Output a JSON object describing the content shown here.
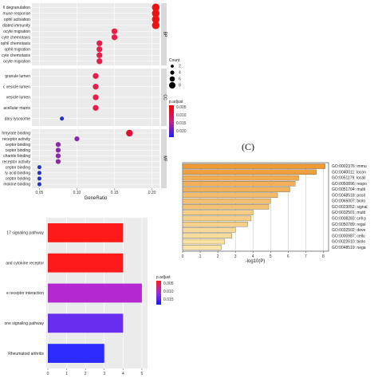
{
  "chart_data": [
    {
      "type": "scatter",
      "xlabel": "GeneRatio",
      "ylabel": "",
      "xlim": [
        0.04,
        0.21
      ],
      "xticks": [
        "0.05",
        "0.10",
        "0.15",
        "0.20"
      ],
      "xtick_values": [
        0.05,
        0.1,
        0.15,
        0.2
      ],
      "facets": [
        {
          "name": "BP",
          "categories": [
            "ll degranulation",
            "mune response",
            "ophil activation",
            "diated immunity",
            "ocyte migration",
            "cyte chemotaxis",
            "ophil chemotaxis",
            "ophil migration",
            "cyte chemotaxis",
            "ocyte migration"
          ],
          "x": [
            0.205,
            0.205,
            0.205,
            0.205,
            0.15,
            0.15,
            0.13,
            0.13,
            0.13,
            0.13
          ],
          "count": [
            5,
            5,
            5,
            5,
            3,
            3,
            3,
            3,
            3,
            3
          ]
        },
        {
          "name": "CC",
          "categories": [
            "granule lumen",
            "c vesicle lumen",
            "vesicle lumen",
            "acellular matrix",
            "dary lysosome"
          ],
          "x": [
            0.125,
            0.125,
            0.125,
            0.125,
            0.08
          ],
          "count": [
            3,
            3,
            3,
            3,
            1
          ]
        },
        {
          "name": "MF",
          "categories": [
            "hmyrate binding",
            "receptor activity",
            "ceptor binding",
            "ceptor binding",
            "charide binding",
            "receptor activity",
            "ceptor binding",
            "ly acid binding",
            "ceptor binding",
            "mokine binding"
          ],
          "x": [
            0.17,
            0.1,
            0.075,
            0.075,
            0.075,
            0.075,
            0.05,
            0.05,
            0.05,
            0.05
          ],
          "count": [
            4,
            2,
            2,
            2,
            2,
            2,
            1,
            1,
            1,
            1
          ]
        }
      ],
      "legend": {
        "count_title": "Count",
        "count_values": [
          2,
          4,
          6,
          8
        ],
        "count_labels": [
          "2",
          "4",
          "6",
          "8"
        ],
        "color_title": "p.adjust",
        "color_labels": [
          "0.005",
          "0.010",
          "0.015",
          "0.020"
        ],
        "color_low": "#ff0000",
        "color_high": "#1a1aff"
      }
    },
    {
      "type": "bar",
      "orientation": "horizontal",
      "panel_label": "(C)",
      "xlabel": "-log10(P)",
      "xlim": [
        0,
        8.3
      ],
      "xticks": [
        "0",
        "1",
        "2",
        "3",
        "4",
        "5",
        "6",
        "7",
        "8"
      ],
      "categories": [
        "GO:0002376: immu",
        "GO:0040011: locon",
        "GO:0051179: locali",
        "GO:0050896: respo",
        "GO:0051704: multi",
        "GO:0048518: posit",
        "GO:0065007: biolo",
        "GO:0023052: signal",
        "GO:0032501: multi",
        "GO:0008283: cell p",
        "GO:0050789: regul",
        "GO:0032502: deve",
        "GO:0000987: cellu",
        "GO:0022610: biolo",
        "GO:0048519: nega"
      ],
      "values": [
        8.1,
        7.6,
        6.6,
        6.4,
        6.1,
        5.4,
        5.0,
        4.9,
        4.0,
        3.9,
        3.7,
        3.0,
        2.8,
        2.4,
        2.2
      ],
      "bar_color_strong": "#ef9a34",
      "bar_color_light": "#f9e3a6"
    },
    {
      "type": "bar",
      "orientation": "horizontal",
      "categories": [
        "17 signaling pathway",
        "and cytokine receptor",
        "e receptor interaction",
        "one signaling pathway",
        "Rheumatoid arthritis"
      ],
      "values": [
        4,
        4,
        5,
        4,
        3
      ],
      "padjust": [
        0.0003,
        0.0003,
        0.008,
        0.016,
        0.019
      ],
      "bar_colors": [
        "#ff1a1a",
        "#ff1a1a",
        "#b428d2",
        "#6a2ef0",
        "#2b2bff"
      ],
      "xlim": [
        0,
        5.3
      ],
      "xticks": [
        "0",
        "1",
        "2",
        "3",
        "4",
        "5"
      ],
      "legend": {
        "color_title": "p.adjust",
        "color_labels": [
          "0.005",
          "0.010",
          "0.015"
        ]
      }
    }
  ]
}
